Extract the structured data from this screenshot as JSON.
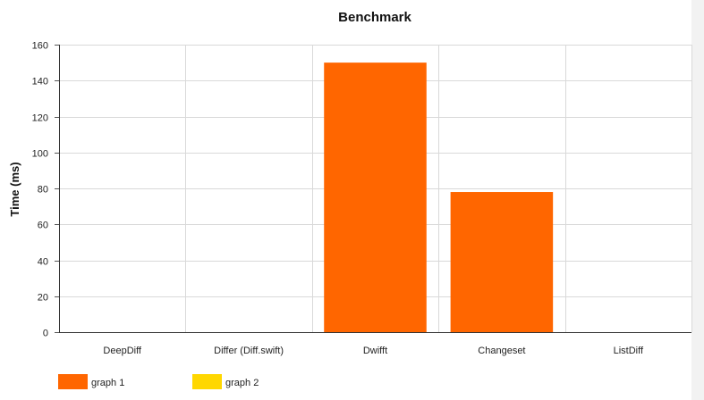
{
  "chart_data": {
    "type": "bar",
    "title": "Benchmark",
    "xlabel": "",
    "ylabel": "Time (ms)",
    "categories": [
      "DeepDiff",
      "Differ (Diff.swift)",
      "Dwifft",
      "Changeset",
      "ListDiff"
    ],
    "series": [
      {
        "name": "graph 1",
        "color": "#ff6600",
        "values": [
          0,
          0,
          150,
          78,
          0
        ]
      },
      {
        "name": "graph 2",
        "color": "#ffd700",
        "values": [
          0,
          0,
          0,
          0,
          0
        ]
      }
    ],
    "ylim": [
      0,
      160
    ],
    "yticks": [
      0,
      20,
      40,
      60,
      80,
      100,
      120,
      140,
      160
    ],
    "grid": true,
    "legend_position": "bottom-left"
  }
}
